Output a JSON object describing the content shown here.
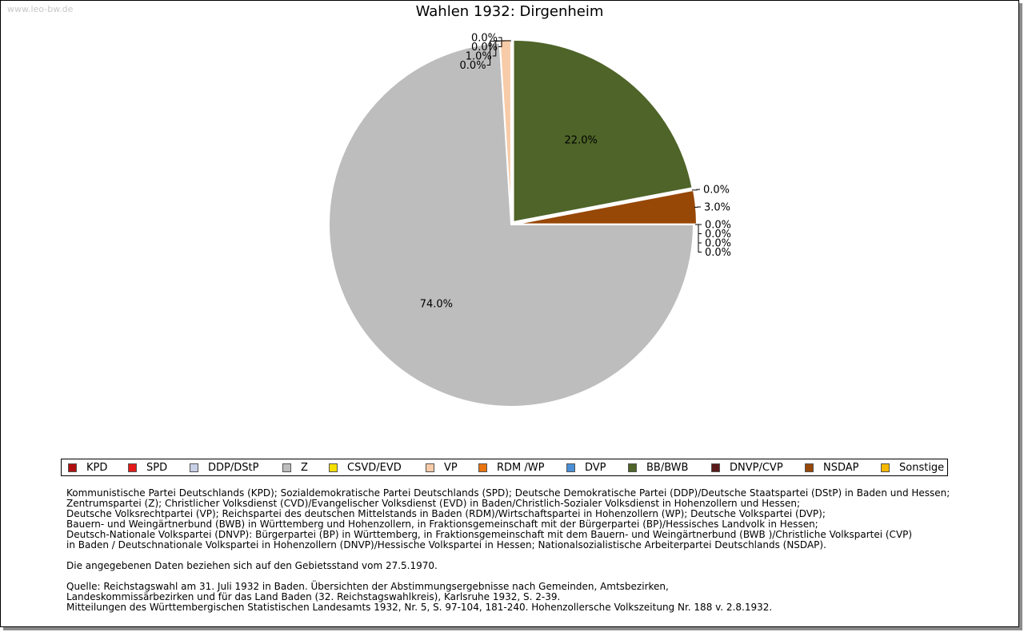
{
  "watermark": "www.leo-bw.de",
  "title": "Wahlen 1932: Dirgenheim",
  "chart_data": {
    "type": "pie",
    "title": "Wahlen 1932: Dirgenheim",
    "start": "clockwise from 3 o'clock",
    "categories": [
      "KPD",
      "SPD",
      "DDP/DStP",
      "Z",
      "CSVD/EVD",
      "VP",
      "RDM /WP",
      "DVP",
      "BB/BWB",
      "DNVP/CVP",
      "NSDAP",
      "Sonstige"
    ],
    "values": [
      0.0,
      0.0,
      0.0,
      74.0,
      0.0,
      1.0,
      0.0,
      0.0,
      22.0,
      0.0,
      3.0,
      0.0
    ],
    "labels": [
      "0.0%",
      "0.0%",
      "0.0%",
      "74.0%",
      "0.0%",
      "1.0%",
      "0.0%",
      "0.0%",
      "22.0%",
      "0.0%",
      "3.0%",
      "0.0%"
    ],
    "colors": [
      "#b01010",
      "#e41a1a",
      "#c8d0e8",
      "#bdbdbd",
      "#f5e000",
      "#f7cba8",
      "#e8730f",
      "#4a8fd6",
      "#4e6428",
      "#5a1a1a",
      "#974706",
      "#f5b800"
    ]
  },
  "legend": [
    {
      "label": "KPD",
      "color": "#b01010"
    },
    {
      "label": "SPD",
      "color": "#e41a1a"
    },
    {
      "label": "DDP/DStP",
      "color": "#c8d0e8"
    },
    {
      "label": "Z",
      "color": "#bdbdbd"
    },
    {
      "label": "CSVD/EVD",
      "color": "#f5e000"
    },
    {
      "label": "VP",
      "color": "#f7cba8"
    },
    {
      "label": "RDM /WP",
      "color": "#e8730f"
    },
    {
      "label": "DVP",
      "color": "#4a8fd6"
    },
    {
      "label": "BB/BWB",
      "color": "#4e6428"
    },
    {
      "label": "DNVP/CVP",
      "color": "#5a1a1a"
    },
    {
      "label": "NSDAP",
      "color": "#974706"
    },
    {
      "label": "Sonstige",
      "color": "#f5b800"
    }
  ],
  "notes": {
    "parties": [
      "Kommunistische Partei Deutschlands (KPD); Sozialdemokratische Partei Deutschlands (SPD); Deutsche Demokratische Partei (DDP)/Deutsche Staatspartei (DStP) in Baden und Hessen;",
      "Zentrumspartei (Z); Christlicher Volksdienst (CVD)/Evangelischer Volksdienst (EVD) in Baden/Christlich-Sozialer Volksdienst in Hohenzollern und Hessen;",
      "Deutsche Volksrechtpartei (VP); Reichspartei des deutschen Mittelstands in Baden (RDM)/Wirtschaftspartei in Hohenzollern (WP); Deutsche Volkspartei (DVP);",
      "Bauern- und Weingärtnerbund (BWB) in Württemberg und Hohenzollern, in Fraktionsgemeinschaft mit der Bürgerpartei (BP)/Hessisches Landvolk in Hessen;",
      "Deutsch-Nationale Volkspartei (DNVP): Bürgerpartei (BP) in Württemberg, in Fraktionsgemeinschaft mit dem Bauern- und Weingärtnerbund (BWB )/Christliche Volkspartei (CVP)",
      "in Baden / Deutschnationale Volkspartei in Hohenzollern (DNVP)/Hessische Volkspartei in Hessen; Nationalsozialistische Arbeiterpartei Deutschlands (NSDAP)."
    ],
    "territory": "Die angegebenen Daten beziehen sich auf den Gebietsstand vom 27.5.1970.",
    "source": [
      "Quelle: Reichstagswahl am 31. Juli 1932 in Baden. Übersichten der Abstimmungsergebnisse nach Gemeinden, Amtsbezirken,",
      "Landeskommissärbezirken und für das Land Baden (32. Reichstagswahlkreis), Karlsruhe 1932, S. 2-39.",
      "Mitteilungen des Württembergischen Statistischen Landesamts 1932, Nr. 5, S. 97-104, 181-240. Hohenzollersche Volkszeitung Nr. 188 v. 2.8.1932."
    ]
  }
}
